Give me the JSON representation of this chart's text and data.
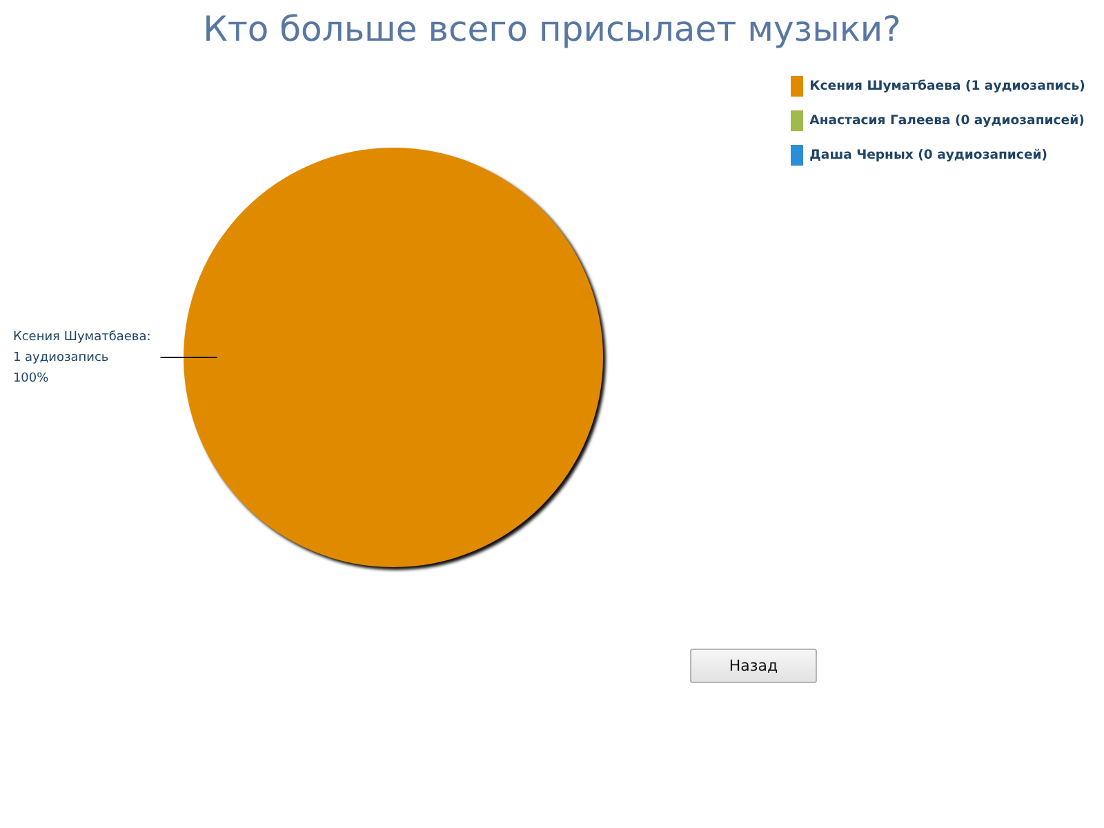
{
  "chart_data": {
    "type": "pie",
    "title": "Кто больше всего присылает музыки?",
    "categories": [
      "Ксения Шуматбаева (1 аудиозапись)",
      "Анастасия Галеева (0 аудиозаписей)",
      "Даша Черных (0 аудиозаписей)"
    ],
    "values": [
      1,
      0,
      0
    ],
    "colors": [
      "#e08a00",
      "#9fbb4c",
      "#2a8fd6"
    ],
    "value_labels": [
      "Ксения Шуматбаева:\n1 аудиозапись\n100%",
      null,
      null
    ],
    "legend": "top right",
    "annotations": [
      "Назад"
    ]
  }
}
